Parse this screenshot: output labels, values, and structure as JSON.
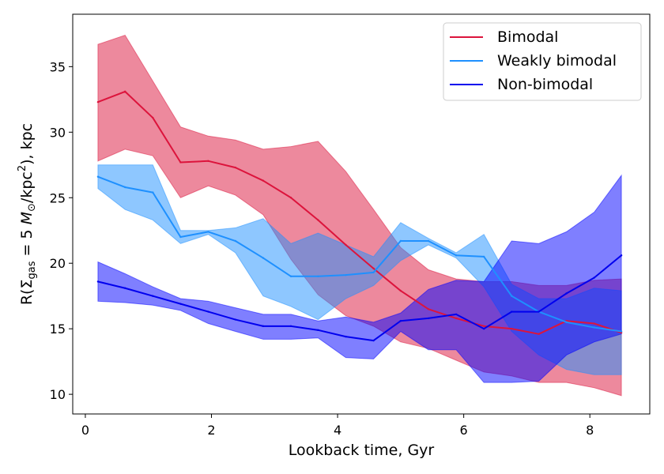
{
  "chart_data": {
    "type": "line",
    "title": "",
    "xlabel": "Lookback time, Gyr",
    "ylabel_parts": {
      "prefix": "R(Σ",
      "subscript": "gas",
      "middle": " = 5 ",
      "unit_symbol": "M",
      "unit_subscript": "⊙",
      "unit_tail": "/kpc",
      "superscript": "2",
      "suffix": "), kpc"
    },
    "xlim": [
      -0.2,
      8.95
    ],
    "ylim": [
      8.5,
      39
    ],
    "xticks": [
      0,
      2,
      4,
      6,
      8
    ],
    "yticks": [
      10,
      15,
      20,
      25,
      30,
      35
    ],
    "x": [
      0.2,
      0.63,
      1.07,
      1.51,
      1.95,
      2.38,
      2.82,
      3.26,
      3.69,
      4.13,
      4.57,
      5.0,
      5.44,
      5.88,
      6.32,
      6.76,
      7.19,
      7.63,
      8.07,
      8.5
    ],
    "legend_position": "upper right",
    "series": [
      {
        "name": "Bimodal",
        "color": "#dc143c",
        "fill_color": "#dc143c",
        "y": [
          32.3,
          33.1,
          31.1,
          27.7,
          27.8,
          27.3,
          26.3,
          25.0,
          23.3,
          21.4,
          19.6,
          17.9,
          16.5,
          15.8,
          15.2,
          15.0,
          14.6,
          15.6,
          15.4,
          14.7
        ],
        "lower": [
          27.8,
          28.7,
          28.2,
          25.0,
          25.9,
          25.2,
          23.7,
          20.3,
          17.6,
          16.0,
          15.2,
          14.0,
          13.5,
          12.6,
          11.7,
          11.4,
          10.9,
          10.9,
          10.5,
          9.9
        ],
        "upper": [
          36.7,
          37.4,
          33.9,
          30.4,
          29.7,
          29.4,
          28.7,
          28.9,
          29.3,
          27.0,
          24.1,
          21.2,
          19.5,
          18.8,
          18.6,
          18.6,
          18.3,
          18.3,
          18.7,
          18.8
        ]
      },
      {
        "name": "Weakly bimodal",
        "color": "#1e90ff",
        "fill_color": "#1e90ff",
        "y": [
          26.6,
          25.8,
          25.4,
          22.0,
          22.4,
          21.7,
          20.4,
          19.0,
          19.0,
          19.1,
          19.3,
          21.7,
          21.7,
          20.6,
          20.5,
          17.5,
          16.3,
          15.5,
          15.1,
          14.8
        ],
        "lower": [
          25.7,
          24.1,
          23.3,
          21.5,
          22.2,
          20.8,
          17.5,
          16.7,
          15.7,
          17.3,
          18.3,
          20.2,
          21.4,
          20.4,
          18.2,
          14.8,
          13.0,
          11.9,
          11.5,
          11.5
        ],
        "upper": [
          27.5,
          27.5,
          27.5,
          22.5,
          22.5,
          22.7,
          23.4,
          21.5,
          22.3,
          21.4,
          20.5,
          23.1,
          21.9,
          20.8,
          22.2,
          18.4,
          17.3,
          17.3,
          18.1,
          17.9
        ]
      },
      {
        "name": "Non-bimodal",
        "color": "#0000ee",
        "fill_color": "#0000ff",
        "y": [
          18.6,
          18.1,
          17.5,
          16.9,
          16.3,
          15.7,
          15.2,
          15.2,
          14.9,
          14.4,
          14.1,
          15.6,
          15.8,
          16.1,
          15.0,
          16.3,
          16.3,
          17.7,
          18.9,
          20.6
        ],
        "lower": [
          17.1,
          17.0,
          16.8,
          16.4,
          15.4,
          14.8,
          14.2,
          14.2,
          14.3,
          12.8,
          12.7,
          14.8,
          13.4,
          13.4,
          10.9,
          10.9,
          11.0,
          13.0,
          14.0,
          14.6
        ],
        "upper": [
          20.1,
          19.2,
          18.2,
          17.3,
          17.1,
          16.6,
          16.1,
          16.1,
          15.6,
          15.9,
          15.5,
          16.2,
          18.0,
          18.7,
          18.6,
          21.7,
          21.5,
          22.4,
          23.9,
          26.7
        ]
      }
    ]
  }
}
